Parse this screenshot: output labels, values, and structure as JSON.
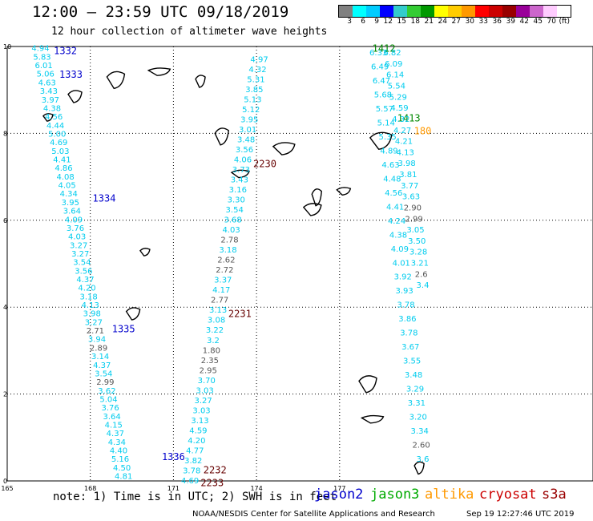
{
  "header": {
    "title": "12:00 — 23:59 UTC 09/18/2019",
    "subtitle": "12 hour collection of altimeter wave heights"
  },
  "colorbar": {
    "colors": [
      "#808080",
      "#00ffff",
      "#00ccff",
      "#0000ff",
      "#33cccc",
      "#33cc33",
      "#009900",
      "#ffff00",
      "#ffcc00",
      "#ff9900",
      "#ff0000",
      "#cc0000",
      "#990000",
      "#990099",
      "#cc66cc",
      "#ffccff",
      "#ffffff"
    ],
    "ticks": [
      "3",
      "6",
      "9",
      "12",
      "15",
      "18",
      "21",
      "24",
      "27",
      "30",
      "33",
      "36",
      "39",
      "42",
      "45",
      "70",
      "(ft)"
    ]
  },
  "axes": {
    "x_ticks": [
      {
        "label": "165",
        "value": 165
      },
      {
        "label": "168",
        "value": 168
      },
      {
        "label": "171",
        "value": 171
      },
      {
        "label": "174",
        "value": 174
      },
      {
        "label": "177",
        "value": 177
      }
    ],
    "y_ticks": [
      {
        "label": "0",
        "value": 0
      },
      {
        "label": "2",
        "value": 2
      },
      {
        "label": "4",
        "value": 4
      },
      {
        "label": "6",
        "value": 6
      },
      {
        "label": "8",
        "value": 8
      },
      {
        "label": "10",
        "value": 10
      }
    ]
  },
  "tracks": [
    {
      "satellite": "jason2",
      "color": "#00ccee",
      "from": [
        166.2,
        9.95
      ],
      "to": [
        169.2,
        0.1
      ],
      "labels": [
        "4.94",
        "5.83",
        "6.01",
        "5.06",
        "4.63",
        "3.43",
        "3.97",
        "4.38",
        "4.56",
        "4.44",
        "5.00",
        "4.69",
        "5.03",
        "4.41",
        "4.86",
        "4.08",
        "4.05",
        "4.34",
        "3.95",
        "3.64",
        "4.09",
        "3.76",
        "4.03",
        "3.27",
        "3.27",
        "3.54",
        "3.56",
        "4.37",
        "4.20",
        "3.18",
        "4.13",
        "3.98",
        "3.27",
        "2.71",
        "3.94",
        "2.89",
        "3.14",
        "4.37",
        "3.54",
        "2.99",
        "3.62",
        "5.04",
        "3.76",
        "3.64",
        "4.15",
        "4.37",
        "4.34",
        "4.40",
        "5.16",
        "4.50",
        "4.81"
      ],
      "pass_labels": [
        {
          "text": "1332",
          "lon": 167.1,
          "lat": 9.9
        },
        {
          "text": "1333",
          "lon": 167.3,
          "lat": 9.35
        },
        {
          "text": "1334",
          "lon": 168.5,
          "lat": 6.5
        },
        {
          "text": "1335",
          "lon": 169.2,
          "lat": 3.5
        },
        {
          "text": "1336",
          "lon": 171.0,
          "lat": 0.55
        }
      ]
    },
    {
      "satellite": "jason2",
      "color": "#00ccee",
      "from": [
        174.1,
        9.7
      ],
      "to": [
        171.6,
        0.0
      ],
      "labels": [
        "4.97",
        "4.32",
        "5.31",
        "3.85",
        "5.13",
        "5.12",
        "3.95",
        "3.01",
        "3.48",
        "3.56",
        "4.06",
        "3.73",
        "3.43",
        "3.16",
        "3.30",
        "3.54",
        "3.68",
        "4.03",
        "2.78",
        "3.18",
        "2.62",
        "2.72",
        "3.37",
        "4.17",
        "2.77",
        "3.13",
        "3.08",
        "3.22",
        "3.2",
        "1.80",
        "2.35",
        "2.95",
        "3.70",
        "3.03",
        "3.27",
        "3.03",
        "3.13",
        "4.59",
        "4.20",
        "4.77",
        "3.82",
        "3.78",
        "4.69"
      ],
      "pass_labels": [
        {
          "text": "2230",
          "lon": 174.3,
          "lat": 7.3
        },
        {
          "text": "2231",
          "lon": 173.4,
          "lat": 3.85
        },
        {
          "text": "2232",
          "lon": 172.5,
          "lat": 0.25
        },
        {
          "text": "2233",
          "lon": 172.4,
          "lat": -0.05
        }
      ]
    },
    {
      "satellite": "jason3",
      "color": "#00ccee",
      "from": [
        178.4,
        9.85
      ],
      "to": [
        180.0,
        0.5
      ],
      "labels": [
        "6.33",
        "6.49",
        "6.47",
        "5.68",
        "5.57",
        "5.14",
        "5.35",
        "4.89",
        "4.63",
        "4.48",
        "4.56",
        "4.41",
        "4.24",
        "4.38",
        "4.09",
        "4.01",
        "3.92",
        "3.93",
        "3.78",
        "3.86",
        "3.78",
        "3.67",
        "3.55",
        "3.48",
        "3.29",
        "3.31",
        "3.20",
        "3.34",
        "2.60",
        "3.6"
      ],
      "pass_labels": [
        {
          "text": "1412",
          "lon": 178.6,
          "lat": 9.95
        },
        {
          "text": "1413",
          "lon": 179.5,
          "lat": 8.35
        }
      ]
    },
    {
      "satellite": "jason3",
      "color": "#00ccee",
      "from": [
        178.9,
        9.85
      ],
      "to": [
        180.0,
        4.5
      ],
      "labels": [
        "6.82",
        "6.09",
        "6.14",
        "5.54",
        "5.29",
        "4.59",
        "4.32",
        "4.27",
        "4.21",
        "4.13",
        "3.98",
        "3.81",
        "3.77",
        "3.63",
        "2.90",
        "2.99",
        "3.05",
        "3.50",
        "3.28",
        "3.21",
        "2.6",
        "3.4"
      ],
      "pass_labels": [
        {
          "text": "180",
          "lon": 180.0,
          "lat": 8.05
        }
      ]
    }
  ],
  "footer": {
    "note": "note: 1) Time is in UTC; 2) SWH is in feet",
    "satellites": [
      {
        "name": "jason2",
        "color": "#0000cc"
      },
      {
        "name": "jason3",
        "color": "#00aa00"
      },
      {
        "name": "altika",
        "color": "#ff9900"
      },
      {
        "name": "cryosat",
        "color": "#cc0000"
      },
      {
        "name": "s3a",
        "color": "#990000"
      }
    ],
    "credit": "NOAA/NESDIS Center for Satellite Applications and Research",
    "timestamp": "Sep 19 12:27:46 UTC 2019"
  }
}
